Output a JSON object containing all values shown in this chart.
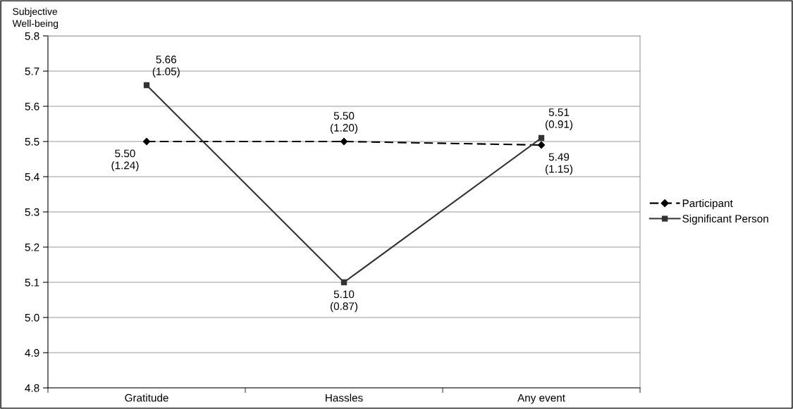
{
  "chart_data": {
    "type": "line",
    "ylabel": "Subjective\nWell-being",
    "categories": [
      "Gratitude",
      "Hassles",
      "Any event"
    ],
    "series": [
      {
        "name": "Participant",
        "color": "#000000",
        "values": [
          5.5,
          5.5,
          5.49
        ],
        "value_labels": [
          "5.50\n(1.24)",
          "5.50\n(1.20)",
          "5.49\n(1.15)"
        ],
        "marker": "diamond",
        "line_style": "dashed"
      },
      {
        "name": "Significant Person",
        "color": "#333333",
        "values": [
          5.66,
          5.1,
          5.51
        ],
        "value_labels": [
          "5.66\n(1.05)",
          "5.10\n(0.87)",
          "5.51\n(0.91)"
        ],
        "marker": "square",
        "line_style": "solid"
      }
    ],
    "ylim": [
      4.8,
      5.8
    ],
    "yticks": [
      4.8,
      4.9,
      {
        "value": 5,
        "label": "5.0"
      },
      5.1,
      5.2,
      5.3,
      5.4,
      5.5,
      5.6,
      5.7,
      5.8
    ],
    "grid": "y",
    "legend": "right"
  }
}
